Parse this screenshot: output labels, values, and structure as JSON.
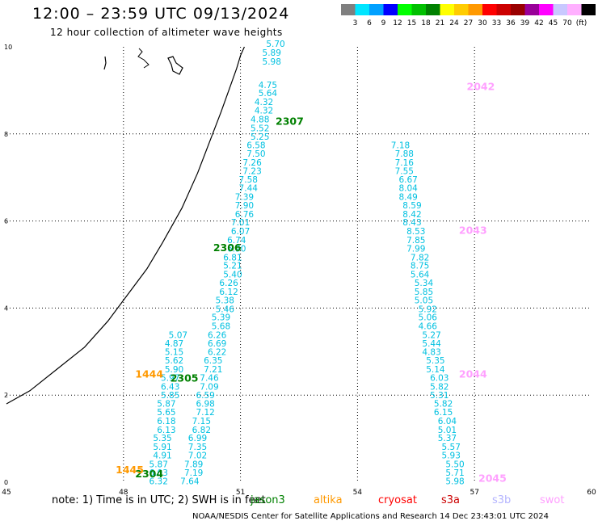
{
  "header": {
    "title": "12:00 – 23:59 UTC 09/13/2024",
    "subtitle": "12 hour collection of altimeter wave heights"
  },
  "colorbar": {
    "colors": [
      "#7f7f7f",
      "#00e5ff",
      "#00a0ff",
      "#0000ff",
      "#00ff00",
      "#00c000",
      "#008000",
      "#ffff00",
      "#ffcc00",
      "#ff9900",
      "#ff0000",
      "#cc0000",
      "#990000",
      "#990099",
      "#ff00ff",
      "#c8c8ff",
      "#ffb0ff",
      "#000000"
    ],
    "labels": [
      "3",
      "6",
      "9",
      "12",
      "15",
      "18",
      "21",
      "24",
      "27",
      "30",
      "33",
      "36",
      "39",
      "42",
      "45",
      "70",
      "(ft)"
    ]
  },
  "footer": {
    "note": "note: 1) Time is in UTC; 2) SWH is in feet",
    "credit": "NOAA/NESDIS Center for Satellite Applications and Research  14 Dec 23:43:01 UTC 2024",
    "satellites": [
      {
        "name": "jason3",
        "color": "#008000"
      },
      {
        "name": "altika",
        "color": "#ff9900"
      },
      {
        "name": "cryosat",
        "color": "#ff0000"
      },
      {
        "name": "s3a",
        "color": "#cc0000"
      },
      {
        "name": "s3b",
        "color": "#b4b4ff"
      },
      {
        "name": "swot",
        "color": "#ffa0ff"
      }
    ]
  },
  "chart_data": {
    "type": "scatter",
    "title": "12 hour collection of altimeter wave heights",
    "xlim": [
      45,
      60
    ],
    "ylim": [
      0,
      10
    ],
    "xticks": [
      "45",
      "48",
      "51",
      "54",
      "57",
      "60"
    ],
    "yticks": [
      "0",
      "2",
      "4",
      "6",
      "8",
      "10"
    ],
    "grid": true,
    "value_color": "#00c0e0",
    "series": [
      {
        "name": "jason3",
        "color": "#008000",
        "points": [
          {
            "x": 49.7,
            "y": 0.03,
            "v": "7.64"
          },
          {
            "x": 49.8,
            "y": 0.22,
            "v": "7.19"
          },
          {
            "x": 49.8,
            "y": 0.42,
            "v": "7.89"
          },
          {
            "x": 49.9,
            "y": 0.62,
            "v": "7.02"
          },
          {
            "x": 49.9,
            "y": 0.82,
            "v": "7.35"
          },
          {
            "x": 49.9,
            "y": 1.02,
            "v": "6.99"
          },
          {
            "x": 50.0,
            "y": 1.21,
            "v": "6.82"
          },
          {
            "x": 50.0,
            "y": 1.41,
            "v": "7.15"
          },
          {
            "x": 50.1,
            "y": 1.61,
            "v": "7.12"
          },
          {
            "x": 50.1,
            "y": 1.81,
            "v": "6.98"
          },
          {
            "x": 50.1,
            "y": 2.0,
            "v": "6.59"
          },
          {
            "x": 50.2,
            "y": 2.2,
            "v": "7.09"
          },
          {
            "x": 50.2,
            "y": 2.4,
            "v": "7.46"
          },
          {
            "x": 50.3,
            "y": 2.6,
            "v": "7.21"
          },
          {
            "x": 50.3,
            "y": 2.8,
            "v": "6.35"
          },
          {
            "x": 50.4,
            "y": 3.0,
            "v": "6.22"
          },
          {
            "x": 50.4,
            "y": 3.19,
            "v": "6.69"
          },
          {
            "x": 50.4,
            "y": 3.39,
            "v": "6.26"
          },
          {
            "x": 50.5,
            "y": 3.59,
            "v": "5.68"
          },
          {
            "x": 50.5,
            "y": 3.79,
            "v": "5.39"
          },
          {
            "x": 50.6,
            "y": 3.98,
            "v": "5.46"
          },
          {
            "x": 50.6,
            "y": 4.18,
            "v": "5.38"
          },
          {
            "x": 50.7,
            "y": 4.38,
            "v": "6.12"
          },
          {
            "x": 50.7,
            "y": 4.58,
            "v": "6.26"
          },
          {
            "x": 50.8,
            "y": 4.78,
            "v": "5.40"
          },
          {
            "x": 50.8,
            "y": 4.98,
            "v": "5.21"
          },
          {
            "x": 50.8,
            "y": 5.17,
            "v": "6.81"
          },
          {
            "x": 50.9,
            "y": 5.37,
            "v": "6.90"
          },
          {
            "x": 50.9,
            "y": 5.57,
            "v": "6.74"
          },
          {
            "x": 51.0,
            "y": 5.77,
            "v": "6.07"
          },
          {
            "x": 51.0,
            "y": 5.97,
            "v": "7.01"
          },
          {
            "x": 51.1,
            "y": 6.16,
            "v": "6.76"
          },
          {
            "x": 51.1,
            "y": 6.36,
            "v": "7.90"
          },
          {
            "x": 51.1,
            "y": 6.56,
            "v": "7.39"
          },
          {
            "x": 51.2,
            "y": 6.76,
            "v": "7.44"
          },
          {
            "x": 51.2,
            "y": 6.96,
            "v": "7.58"
          },
          {
            "x": 51.3,
            "y": 7.15,
            "v": "7.23"
          },
          {
            "x": 51.3,
            "y": 7.35,
            "v": "7.26"
          },
          {
            "x": 51.4,
            "y": 7.55,
            "v": "7.50"
          },
          {
            "x": 51.4,
            "y": 7.75,
            "v": "6.58"
          },
          {
            "x": 51.5,
            "y": 7.94,
            "v": "5.25"
          },
          {
            "x": 51.5,
            "y": 8.14,
            "v": "5.52"
          },
          {
            "x": 51.5,
            "y": 8.34,
            "v": "4.88"
          },
          {
            "x": 51.6,
            "y": 8.54,
            "v": "4.32"
          },
          {
            "x": 51.6,
            "y": 8.74,
            "v": "4.32"
          },
          {
            "x": 51.7,
            "y": 8.94,
            "v": "5.64"
          },
          {
            "x": 51.7,
            "y": 9.13,
            "v": "4.75"
          },
          {
            "x": 51.8,
            "y": 9.67,
            "v": "5.98"
          },
          {
            "x": 51.8,
            "y": 9.87,
            "v": "5.89"
          },
          {
            "x": 51.9,
            "y": 10.07,
            "v": "5.70"
          }
        ]
      },
      {
        "name": "altika",
        "color": "#ff9900",
        "points": [
          {
            "x": 48.9,
            "y": 0.03,
            "v": "6.32"
          },
          {
            "x": 48.9,
            "y": 0.22,
            "v": "6.03"
          },
          {
            "x": 48.9,
            "y": 0.42,
            "v": "5.87"
          },
          {
            "x": 49.0,
            "y": 0.62,
            "v": "4.91"
          },
          {
            "x": 49.0,
            "y": 0.82,
            "v": "5.91"
          },
          {
            "x": 49.0,
            "y": 1.02,
            "v": "5.35"
          },
          {
            "x": 49.1,
            "y": 1.21,
            "v": "6.13"
          },
          {
            "x": 49.1,
            "y": 1.41,
            "v": "6.18"
          },
          {
            "x": 49.1,
            "y": 1.61,
            "v": "5.65"
          },
          {
            "x": 49.1,
            "y": 1.81,
            "v": "5.87"
          },
          {
            "x": 49.2,
            "y": 2.0,
            "v": "5.85"
          },
          {
            "x": 49.2,
            "y": 2.2,
            "v": "6.43"
          },
          {
            "x": 49.2,
            "y": 2.4,
            "v": "5.97"
          },
          {
            "x": 49.3,
            "y": 2.6,
            "v": "5.90"
          },
          {
            "x": 49.3,
            "y": 2.8,
            "v": "5.62"
          },
          {
            "x": 49.3,
            "y": 3.0,
            "v": "5.15"
          },
          {
            "x": 49.3,
            "y": 3.19,
            "v": "4.87"
          },
          {
            "x": 49.4,
            "y": 3.39,
            "v": "5.07"
          }
        ]
      },
      {
        "name": "swot",
        "color": "#ffa0ff",
        "points": [
          {
            "x": 56.5,
            "y": 0.03,
            "v": "5.98"
          },
          {
            "x": 56.5,
            "y": 0.22,
            "v": "5.71"
          },
          {
            "x": 56.5,
            "y": 0.42,
            "v": "5.50"
          },
          {
            "x": 56.4,
            "y": 0.62,
            "v": "5.93"
          },
          {
            "x": 56.4,
            "y": 0.82,
            "v": "5.57"
          },
          {
            "x": 56.3,
            "y": 1.02,
            "v": "5.37"
          },
          {
            "x": 56.3,
            "y": 1.21,
            "v": "5.01"
          },
          {
            "x": 56.3,
            "y": 1.41,
            "v": "6.04"
          },
          {
            "x": 56.2,
            "y": 1.61,
            "v": "6.15"
          },
          {
            "x": 56.2,
            "y": 1.81,
            "v": "5.82"
          },
          {
            "x": 56.1,
            "y": 2.0,
            "v": "5.31"
          },
          {
            "x": 56.1,
            "y": 2.2,
            "v": "5.82"
          },
          {
            "x": 56.1,
            "y": 2.4,
            "v": "6.03"
          },
          {
            "x": 56.0,
            "y": 2.6,
            "v": "5.14"
          },
          {
            "x": 56.0,
            "y": 2.8,
            "v": "5.35"
          },
          {
            "x": 55.9,
            "y": 3.0,
            "v": "4.83"
          },
          {
            "x": 55.9,
            "y": 3.19,
            "v": "5.44"
          },
          {
            "x": 55.9,
            "y": 3.39,
            "v": "5.27"
          },
          {
            "x": 55.8,
            "y": 3.59,
            "v": "4.66"
          },
          {
            "x": 55.8,
            "y": 3.79,
            "v": "5.06"
          },
          {
            "x": 55.8,
            "y": 3.98,
            "v": "5.92"
          },
          {
            "x": 55.7,
            "y": 4.18,
            "v": "5.05"
          },
          {
            "x": 55.7,
            "y": 4.38,
            "v": "5.85"
          },
          {
            "x": 55.7,
            "y": 4.58,
            "v": "5.34"
          },
          {
            "x": 55.6,
            "y": 4.78,
            "v": "5.64"
          },
          {
            "x": 55.6,
            "y": 4.98,
            "v": "8.75"
          },
          {
            "x": 55.6,
            "y": 5.17,
            "v": "7.82"
          },
          {
            "x": 55.5,
            "y": 5.37,
            "v": "7.99"
          },
          {
            "x": 55.5,
            "y": 5.57,
            "v": "7.85"
          },
          {
            "x": 55.5,
            "y": 5.77,
            "v": "8.53"
          },
          {
            "x": 55.4,
            "y": 5.97,
            "v": "8.43"
          },
          {
            "x": 55.4,
            "y": 6.16,
            "v": "8.42"
          },
          {
            "x": 55.4,
            "y": 6.36,
            "v": "8.59"
          },
          {
            "x": 55.3,
            "y": 6.56,
            "v": "8.49"
          },
          {
            "x": 55.3,
            "y": 6.76,
            "v": "8.04"
          },
          {
            "x": 55.3,
            "y": 6.96,
            "v": "6.67"
          },
          {
            "x": 55.2,
            "y": 7.15,
            "v": "7.55"
          },
          {
            "x": 55.2,
            "y": 7.35,
            "v": "7.16"
          },
          {
            "x": 55.2,
            "y": 7.55,
            "v": "7.88"
          },
          {
            "x": 55.1,
            "y": 7.75,
            "v": "7.18"
          }
        ]
      }
    ],
    "time_labels": [
      {
        "x": 51.9,
        "y": 8.3,
        "label": "2307",
        "color": "#008000"
      },
      {
        "x": 50.3,
        "y": 5.4,
        "label": "2306",
        "color": "#008000"
      },
      {
        "x": 49.2,
        "y": 2.4,
        "label": "2305",
        "color": "#008000"
      },
      {
        "x": 48.3,
        "y": 0.2,
        "label": "2304",
        "color": "#008000"
      },
      {
        "x": 48.3,
        "y": 2.5,
        "label": "1444",
        "color": "#ff9900"
      },
      {
        "x": 47.8,
        "y": 0.3,
        "label": "1445",
        "color": "#ff9900"
      },
      {
        "x": 56.8,
        "y": 9.1,
        "label": "2042",
        "color": "#ffa0ff"
      },
      {
        "x": 56.6,
        "y": 5.8,
        "label": "2043",
        "color": "#ffa0ff"
      },
      {
        "x": 56.6,
        "y": 2.5,
        "label": "2044",
        "color": "#ffa0ff"
      },
      {
        "x": 57.1,
        "y": 0.1,
        "label": "2045",
        "color": "#ffa0ff"
      }
    ],
    "coastline": [
      [
        45.0,
        1.8
      ],
      [
        45.6,
        2.1
      ],
      [
        46.3,
        2.6
      ],
      [
        47.0,
        3.1
      ],
      [
        47.6,
        3.7
      ],
      [
        48.1,
        4.3
      ],
      [
        48.6,
        4.9
      ],
      [
        49.0,
        5.5
      ],
      [
        49.5,
        6.3
      ],
      [
        49.9,
        7.1
      ],
      [
        50.2,
        7.8
      ],
      [
        50.5,
        8.5
      ],
      [
        50.7,
        9.0
      ],
      [
        50.9,
        9.5
      ],
      [
        51.0,
        9.8
      ],
      [
        51.1,
        10.0
      ]
    ]
  }
}
